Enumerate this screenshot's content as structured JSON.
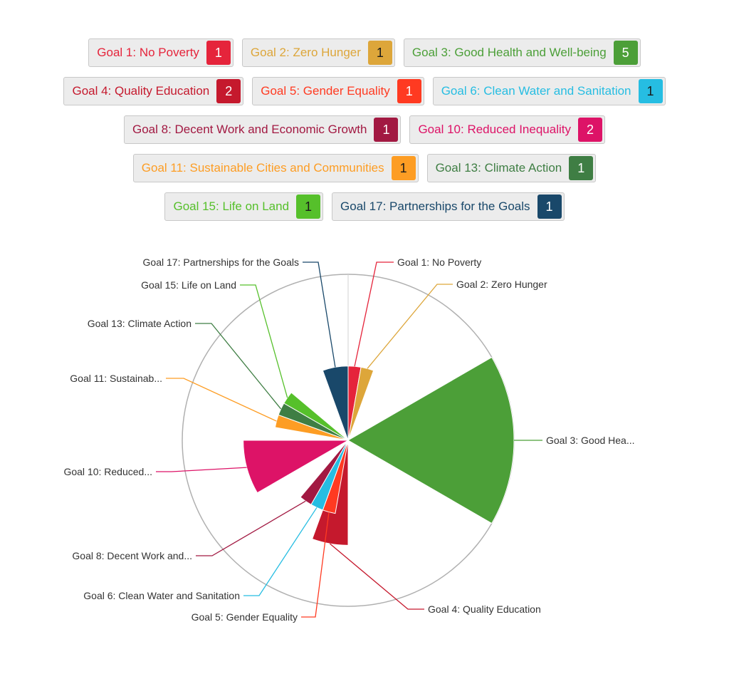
{
  "goals": [
    {
      "label": "Goal 1: No Poverty",
      "count": "1",
      "color": "#e5243b",
      "count_text_color": "#ffffff"
    },
    {
      "label": "Goal 2: Zero Hunger",
      "count": "1",
      "color": "#dda63a",
      "count_text_color": "#1a1a1a"
    },
    {
      "label": "Goal 3: Good Health and Well-being",
      "count": "5",
      "color": "#4c9f38",
      "count_text_color": "#ffffff"
    },
    {
      "label": "Goal 4: Quality Education",
      "count": "2",
      "color": "#c5192d",
      "count_text_color": "#ffffff"
    },
    {
      "label": "Goal 5: Gender Equality",
      "count": "1",
      "color": "#ff3a21",
      "count_text_color": "#ffffff"
    },
    {
      "label": "Goal 6: Clean Water and Sanitation",
      "count": "1",
      "color": "#26bde2",
      "count_text_color": "#1a1a1a"
    },
    {
      "label": "Goal 8: Decent Work and Economic Growth",
      "count": "1",
      "color": "#a21942",
      "count_text_color": "#ffffff"
    },
    {
      "label": "Goal 10: Reduced Inequality",
      "count": "2",
      "color": "#dd1367",
      "count_text_color": "#ffffff"
    },
    {
      "label": "Goal 11: Sustainable Cities and Communities",
      "count": "1",
      "color": "#fd9d24",
      "count_text_color": "#1a1a1a"
    },
    {
      "label": "Goal 13: Climate Action",
      "count": "1",
      "color": "#3f7e44",
      "count_text_color": "#ffffff"
    },
    {
      "label": "Goal 15: Life on Land",
      "count": "1",
      "color": "#56c02b",
      "count_text_color": "#1a1a1a"
    },
    {
      "label": "Goal 17: Partnerships for the Goals",
      "count": "1",
      "color": "#19486a",
      "count_text_color": "#ffffff"
    }
  ],
  "chart_data": {
    "type": "polar-area",
    "categories": [
      "Goal 1: No Poverty",
      "Goal 2: Zero Hunger",
      "Goal 3: Good Health and Well-being",
      "Goal 4: Quality Education",
      "Goal 5: Gender Equality",
      "Goal 6: Clean Water and Sanitation",
      "Goal 8: Decent Work and Economic Growth",
      "Goal 10: Reduced Inequality",
      "Goal 11: Sustainable Cities and Communities",
      "Goal 13: Climate Action",
      "Goal 15: Life on Land",
      "Goal 17: Partnerships for the Goals"
    ],
    "labels": [
      "Goal 1: No Poverty",
      "Goal 2: Zero Hunger",
      "Goal 3: Good Hea...",
      "Goal 4: Quality Education",
      "Goal 5: Gender Equality",
      "Goal 6: Clean Water and Sanitation",
      "Goal 8: Decent Work and...",
      "Goal 10: Reduced...",
      "Goal 11: Sustainab...",
      "Goal 13: Climate Action",
      "Goal 15: Life on Land",
      "Goal 17: Partnerships for the Goals"
    ],
    "values": [
      1,
      1,
      5,
      2,
      1,
      1,
      1,
      2,
      1,
      1,
      1,
      1
    ],
    "start_angle_deg": [
      0,
      10,
      60,
      180,
      190,
      200,
      210,
      240,
      280,
      290,
      300,
      340
    ],
    "end_angle_deg": [
      10,
      20,
      120,
      200,
      200,
      210,
      220,
      270,
      290,
      300,
      310,
      360
    ],
    "axis_max": 5,
    "colors": [
      "#e5243b",
      "#dda63a",
      "#4c9f38",
      "#c5192d",
      "#ff3a21",
      "#26bde2",
      "#a21942",
      "#dd1367",
      "#fd9d24",
      "#3f7e44",
      "#56c02b",
      "#19486a"
    ]
  }
}
